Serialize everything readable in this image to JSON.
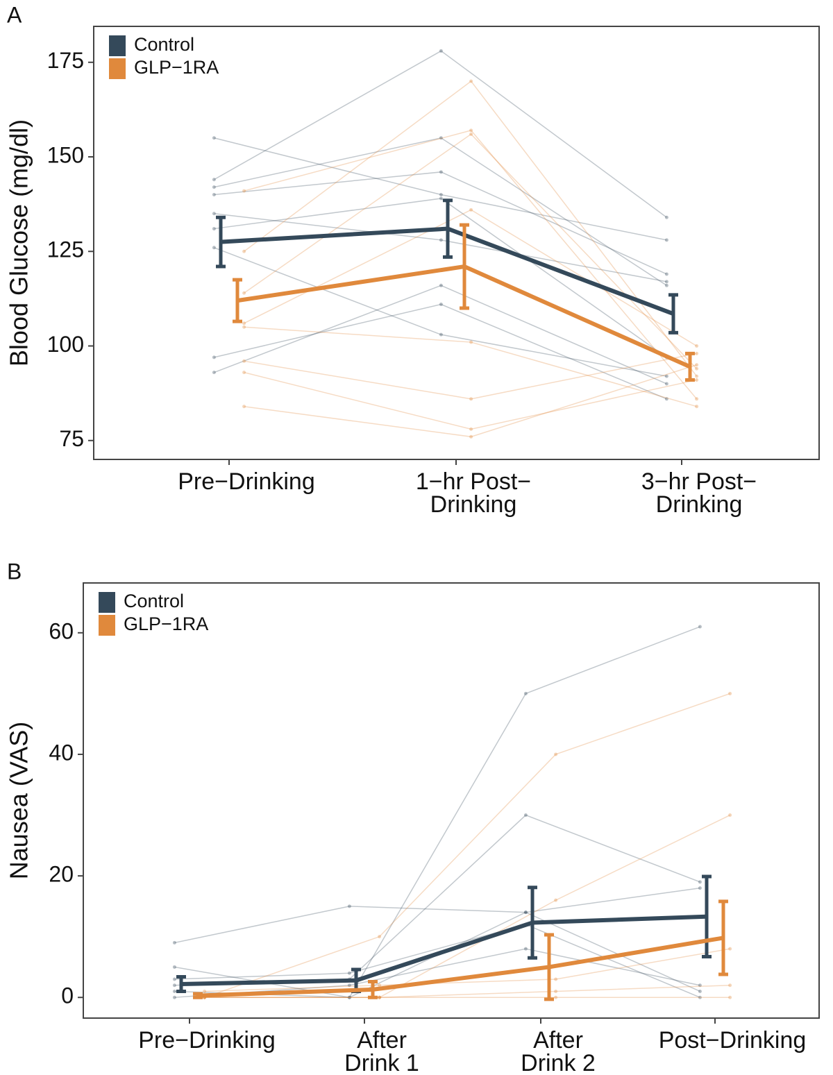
{
  "chart_data": [
    {
      "type": "line",
      "panel_label": "A",
      "ylabel": "Blood Glucose (mg/dl)",
      "categories": [
        [
          "Pre−Drinking"
        ],
        [
          "1−hr Post−",
          "Drinking"
        ],
        [
          "3−hr Post−",
          "Drinking"
        ]
      ],
      "ylim": [
        70,
        184.5
      ],
      "yticks": [
        75,
        100,
        125,
        150,
        175
      ],
      "grid": false,
      "legend": "top-left",
      "series": [
        {
          "name": "Control",
          "color": "#34495a",
          "values": [
            127.5,
            131,
            108.5
          ],
          "errors": [
            6.5,
            7.5,
            5
          ],
          "individuals": [
            [
              155,
              140,
              128
            ],
            [
              144,
              178,
              134
            ],
            [
              142,
              155,
              116
            ],
            [
              140,
              146,
              119
            ],
            [
              131,
              139,
              97
            ],
            [
              126,
              103,
              92
            ],
            [
              97,
              111,
              86
            ],
            [
              93,
              116,
              90
            ],
            [
              135,
              128,
              117
            ]
          ]
        },
        {
          "name": "GLP−1RA",
          "color": "#e0893c",
          "values": [
            112,
            121,
            94.5
          ],
          "errors": [
            5.5,
            11,
            3.5
          ],
          "individuals": [
            [
              125,
              170,
              92
            ],
            [
              141,
              157,
              86
            ],
            [
              114,
              156,
              94
            ],
            [
              105,
              101,
              84
            ],
            [
              84,
              76,
              95
            ],
            [
              93,
              78,
              91
            ],
            [
              106,
              136,
              100
            ],
            [
              96,
              86,
              98
            ]
          ]
        }
      ]
    },
    {
      "type": "line",
      "panel_label": "B",
      "ylabel": "Nausea (VAS)",
      "categories": [
        [
          "Pre−Drinking"
        ],
        [
          "After",
          "Drink 1"
        ],
        [
          "After",
          "Drink 2"
        ],
        [
          "Post−Drinking"
        ]
      ],
      "ylim": [
        -3.4,
        68.2
      ],
      "yticks": [
        0,
        20,
        40,
        60
      ],
      "grid": false,
      "legend": "top-left",
      "series": [
        {
          "name": "Control",
          "color": "#34495a",
          "values": [
            2.2,
            2.8,
            12.3,
            13.3
          ],
          "errors": [
            1.2,
            1.8,
            5.8,
            6.6
          ],
          "individuals": [
            [
              9,
              15,
              14,
              1
            ],
            [
              5,
              0,
              50,
              61
            ],
            [
              2,
              3,
              30,
              19
            ],
            [
              1,
              0,
              14,
              18
            ],
            [
              0,
              2,
              8,
              2
            ],
            [
              3,
              4,
              12,
              0
            ]
          ]
        },
        {
          "name": "GLP−1RA",
          "color": "#e0893c",
          "values": [
            0.3,
            1.3,
            5.0,
            9.8
          ],
          "errors": [
            0.3,
            1.3,
            5.3,
            6.0
          ],
          "individuals": [
            [
              0,
              10,
              40,
              50
            ],
            [
              0,
              0,
              16,
              30
            ],
            [
              0,
              0,
              0,
              0
            ],
            [
              1,
              2,
              3,
              8
            ],
            [
              0,
              0,
              1,
              2
            ]
          ]
        }
      ]
    }
  ]
}
